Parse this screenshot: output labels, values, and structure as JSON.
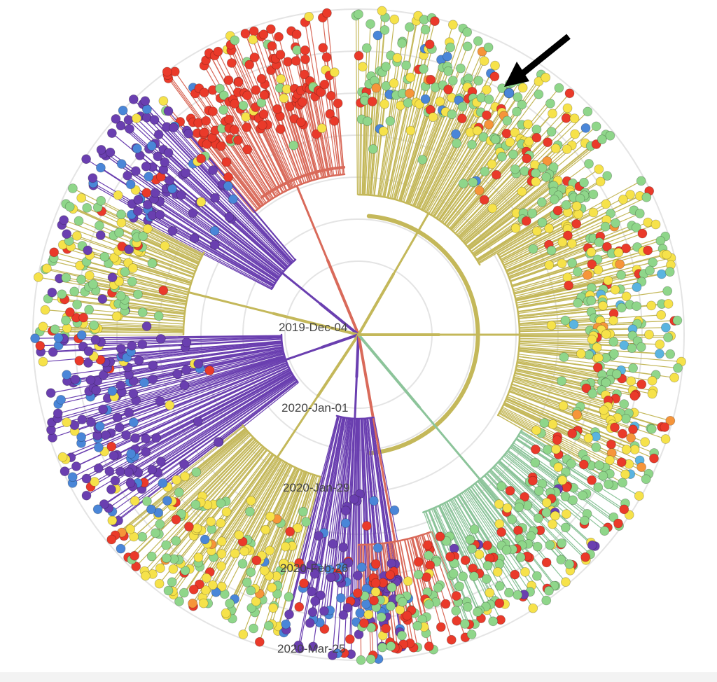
{
  "figure": {
    "kind": "radial phylogenetic tree",
    "time_axis_labels": [
      "2019-Dec-04",
      "2020-Jan-01",
      "2020-Jan-29",
      "2020-Feb-26",
      "2020-Mar-25"
    ],
    "annotation": {
      "type": "arrow",
      "target": "blue tip in upper-right clade",
      "color": "#000000"
    },
    "palette": {
      "purple": "#6a3fb0",
      "blue": "#4a86d8",
      "light_blue": "#5ab4e0",
      "green": "#8fd68a",
      "light_green": "#b8e07a",
      "yellow": "#f6e24a",
      "orange": "#f6953a",
      "red": "#ea3a2a",
      "olive_branch": "#c4b85a",
      "teal_branch": "#8cc49a",
      "red_branch": "#d96a5a"
    }
  }
}
